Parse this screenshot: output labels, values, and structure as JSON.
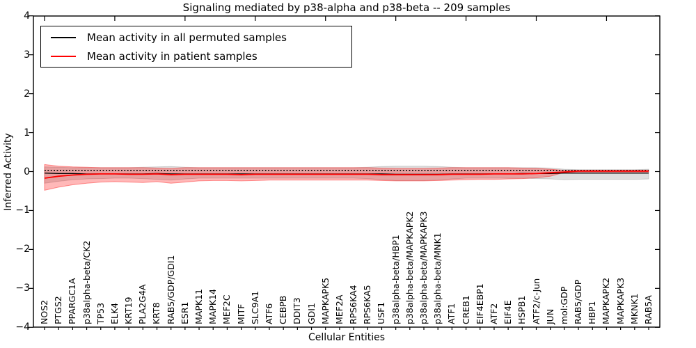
{
  "title": "Signaling mediated by p38-alpha and p38-beta -- 209 samples",
  "axes": {
    "xlabel": "Cellular Entities",
    "ylabel": "Inferred Activity",
    "ylim": [
      -4,
      4
    ],
    "ytick_labels": [
      "4",
      "3",
      "2",
      "1",
      "0",
      "−1",
      "−2",
      "−3",
      "−4"
    ],
    "ytick_values": [
      4,
      3,
      2,
      1,
      0,
      -1,
      -2,
      -3,
      -4
    ]
  },
  "legend": {
    "entries": [
      {
        "label": "Mean activity in all permuted samples",
        "color": "#000000"
      },
      {
        "label": "Mean activity in patient samples",
        "color": "#ff0000"
      }
    ]
  },
  "chart_data": {
    "type": "line",
    "title": "Signaling mediated by p38-alpha and p38-beta -- 209 samples",
    "xlabel": "Cellular Entities",
    "ylabel": "Inferred Activity",
    "ylim": [
      -4,
      4
    ],
    "grid": false,
    "legend_position": "upper left",
    "categories": [
      "NOS2",
      "PTGS2",
      "PPARGC1A",
      "p38alpha-beta/CK2",
      "TP53",
      "ELK4",
      "KRT19",
      "PLA2G4A",
      "KRT8",
      "RAB5/GDP/GDI1",
      "ESR1",
      "MAPK11",
      "MAPK14",
      "MEF2C",
      "MITF",
      "SLC9A1",
      "ATF6",
      "CEBPB",
      "DDIT3",
      "GDI1",
      "MAPKAPK5",
      "MEF2A",
      "RPS6KA4",
      "RPS6KA5",
      "USF1",
      "p38alpha-beta/HBP1",
      "p38alpha-beta/MAPKAPK2",
      "p38alpha-beta/MAPKAPK3",
      "p38alpha-beta/MNK1",
      "ATF1",
      "CREB1",
      "EIF4EBP1",
      "ATF2",
      "EIF4E",
      "HSPB1",
      "ATF2/c-Jun",
      "JUN",
      "mol:GDP",
      "RAB5/GDP",
      "HBP1",
      "MAPKAPK2",
      "MAPKAPK3",
      "MKNK1",
      "RAB5A"
    ],
    "reference_line": 0.03,
    "series": [
      {
        "name": "Mean activity in all permuted samples",
        "color": "#000000",
        "width": 1.3,
        "values": [
          -0.04,
          -0.05,
          -0.05,
          -0.06,
          -0.06,
          -0.06,
          -0.06,
          -0.06,
          -0.05,
          -0.06,
          -0.06,
          -0.06,
          -0.06,
          -0.06,
          -0.06,
          -0.06,
          -0.06,
          -0.06,
          -0.06,
          -0.06,
          -0.06,
          -0.06,
          -0.06,
          -0.06,
          -0.06,
          -0.07,
          -0.07,
          -0.07,
          -0.07,
          -0.06,
          -0.06,
          -0.06,
          -0.06,
          -0.06,
          -0.05,
          -0.05,
          -0.05,
          -0.04,
          -0.04,
          -0.04,
          -0.04,
          -0.04,
          -0.04,
          -0.04
        ]
      },
      {
        "name": "Mean activity in patient samples",
        "color": "#ff0000",
        "width": 1.8,
        "values": [
          -0.17,
          -0.12,
          -0.09,
          -0.07,
          -0.06,
          -0.06,
          -0.07,
          -0.07,
          -0.06,
          -0.08,
          -0.07,
          -0.07,
          -0.07,
          -0.07,
          -0.08,
          -0.07,
          -0.07,
          -0.07,
          -0.07,
          -0.07,
          -0.07,
          -0.07,
          -0.07,
          -0.07,
          -0.08,
          -0.08,
          -0.08,
          -0.08,
          -0.08,
          -0.07,
          -0.07,
          -0.07,
          -0.06,
          -0.06,
          -0.06,
          -0.05,
          -0.03,
          -0.01,
          0.01,
          0.01,
          0.01,
          0.01,
          0.01,
          0.01
        ]
      }
    ],
    "bands": [
      {
        "name": "permuted-range",
        "fill": "rgba(0,0,0,0.13)",
        "edge": "rgba(0,0,0,0.15)",
        "upper": [
          0.12,
          0.11,
          0.1,
          0.1,
          0.1,
          0.1,
          0.1,
          0.11,
          0.12,
          0.13,
          0.11,
          0.1,
          0.1,
          0.1,
          0.1,
          0.1,
          0.1,
          0.1,
          0.1,
          0.1,
          0.1,
          0.1,
          0.1,
          0.11,
          0.13,
          0.14,
          0.14,
          0.14,
          0.13,
          0.11,
          0.1,
          0.1,
          0.1,
          0.1,
          0.1,
          0.1,
          0.09,
          0.06,
          0.05,
          0.05,
          0.05,
          0.05,
          0.05,
          0.06
        ],
        "lower": [
          -0.3,
          -0.25,
          -0.21,
          -0.19,
          -0.18,
          -0.17,
          -0.17,
          -0.18,
          -0.2,
          -0.22,
          -0.19,
          -0.17,
          -0.17,
          -0.17,
          -0.17,
          -0.17,
          -0.17,
          -0.17,
          -0.17,
          -0.17,
          -0.17,
          -0.17,
          -0.17,
          -0.18,
          -0.21,
          -0.23,
          -0.23,
          -0.23,
          -0.22,
          -0.19,
          -0.17,
          -0.17,
          -0.17,
          -0.17,
          -0.17,
          -0.18,
          -0.19,
          -0.21,
          -0.2,
          -0.2,
          -0.2,
          -0.2,
          -0.2,
          -0.19
        ]
      },
      {
        "name": "patient-range",
        "fill": "rgba(255,0,0,0.28)",
        "edge": "rgba(255,0,0,0.4)",
        "upper": [
          0.18,
          0.14,
          0.12,
          0.11,
          0.1,
          0.1,
          0.1,
          0.1,
          0.09,
          0.08,
          0.1,
          0.1,
          0.1,
          0.1,
          0.1,
          0.1,
          0.1,
          0.1,
          0.1,
          0.1,
          0.1,
          0.1,
          0.1,
          0.1,
          0.09,
          0.08,
          0.08,
          0.08,
          0.09,
          0.1,
          0.1,
          0.1,
          0.1,
          0.1,
          0.09,
          0.08,
          0.06,
          0.03,
          0.03,
          0.03,
          0.03,
          0.03,
          0.03,
          0.03
        ],
        "lower": [
          -0.48,
          -0.4,
          -0.34,
          -0.3,
          -0.27,
          -0.26,
          -0.27,
          -0.28,
          -0.26,
          -0.3,
          -0.27,
          -0.24,
          -0.23,
          -0.23,
          -0.24,
          -0.23,
          -0.22,
          -0.22,
          -0.22,
          -0.22,
          -0.22,
          -0.22,
          -0.22,
          -0.22,
          -0.23,
          -0.24,
          -0.24,
          -0.24,
          -0.23,
          -0.22,
          -0.21,
          -0.2,
          -0.2,
          -0.19,
          -0.18,
          -0.16,
          -0.12,
          -0.02,
          -0.01,
          -0.01,
          -0.01,
          -0.01,
          -0.01,
          -0.01
        ]
      }
    ]
  }
}
